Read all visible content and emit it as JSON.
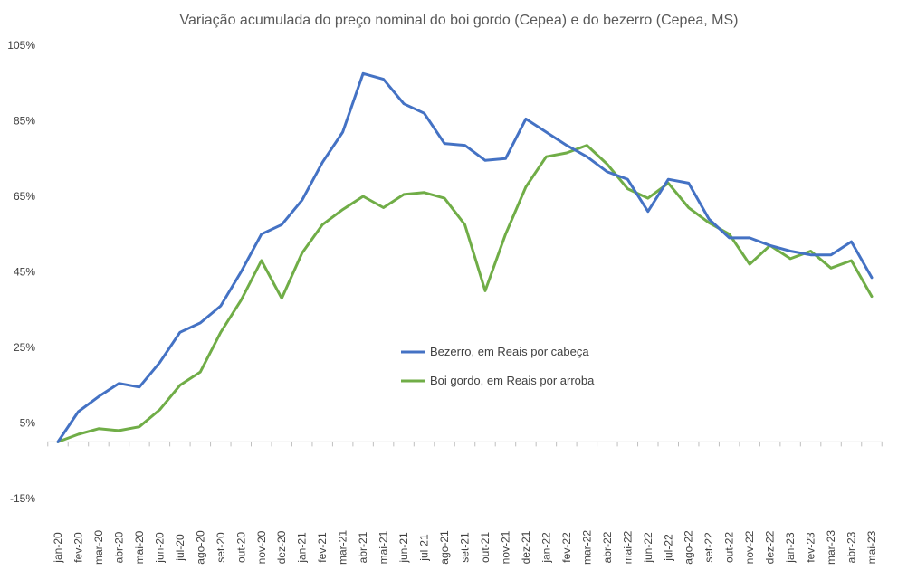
{
  "chart_data": {
    "type": "line",
    "title": "Variação acumulada do preço nominal do boi gordo (Cepea) e do bezerro (Cepea, MS)",
    "xlabel": "",
    "ylabel": "",
    "ylim": [
      -15,
      105
    ],
    "yticks": [
      -15,
      5,
      25,
      45,
      65,
      85,
      105
    ],
    "ytick_labels": [
      "-15%",
      "5%",
      "25%",
      "45%",
      "65%",
      "85%",
      "105%"
    ],
    "grid": false,
    "legend_position": "center",
    "categories": [
      "jan-20",
      "fev-20",
      "mar-20",
      "abr-20",
      "mai-20",
      "jun-20",
      "jul-20",
      "ago-20",
      "set-20",
      "out-20",
      "nov-20",
      "dez-20",
      "jan-21",
      "fev-21",
      "mar-21",
      "abr-21",
      "mai-21",
      "jun-21",
      "jul-21",
      "ago-21",
      "set-21",
      "out-21",
      "nov-21",
      "dez-21",
      "jan-22",
      "fev-22",
      "mar-22",
      "abr-22",
      "mai-22",
      "jun-22",
      "jul-22",
      "ago-22",
      "set-22",
      "out-22",
      "nov-22",
      "dez-22",
      "jan-23",
      "fev-23",
      "mar-23",
      "abr-23",
      "mai-23"
    ],
    "series": [
      {
        "name": "Bezerro, em Reais por cabeça",
        "color": "#4472c4",
        "values": [
          0,
          8,
          12,
          15.5,
          14.5,
          21,
          29,
          31.5,
          36,
          45,
          55,
          57.5,
          64,
          74,
          82,
          97.5,
          96,
          89.5,
          87,
          79,
          78.5,
          74.5,
          75,
          85.5,
          82,
          78.5,
          75.5,
          71.5,
          69.5,
          61,
          69.5,
          68.5,
          59,
          54,
          54,
          52,
          50.5,
          49.5,
          49.5,
          53,
          43.5
        ]
      },
      {
        "name": "Boi gordo, em Reais por arroba",
        "color": "#70ad47",
        "values": [
          0,
          2,
          3.5,
          3,
          4,
          8.5,
          15,
          18.5,
          29,
          37.5,
          48,
          38,
          50,
          57.5,
          61.5,
          65,
          62,
          65.5,
          66,
          64.5,
          57.5,
          40,
          55,
          67.5,
          75.5,
          76.5,
          78.5,
          73.5,
          67,
          64.5,
          68.5,
          62,
          58,
          55,
          47,
          52,
          48.5,
          50.5,
          46,
          48,
          38.5
        ]
      }
    ]
  }
}
